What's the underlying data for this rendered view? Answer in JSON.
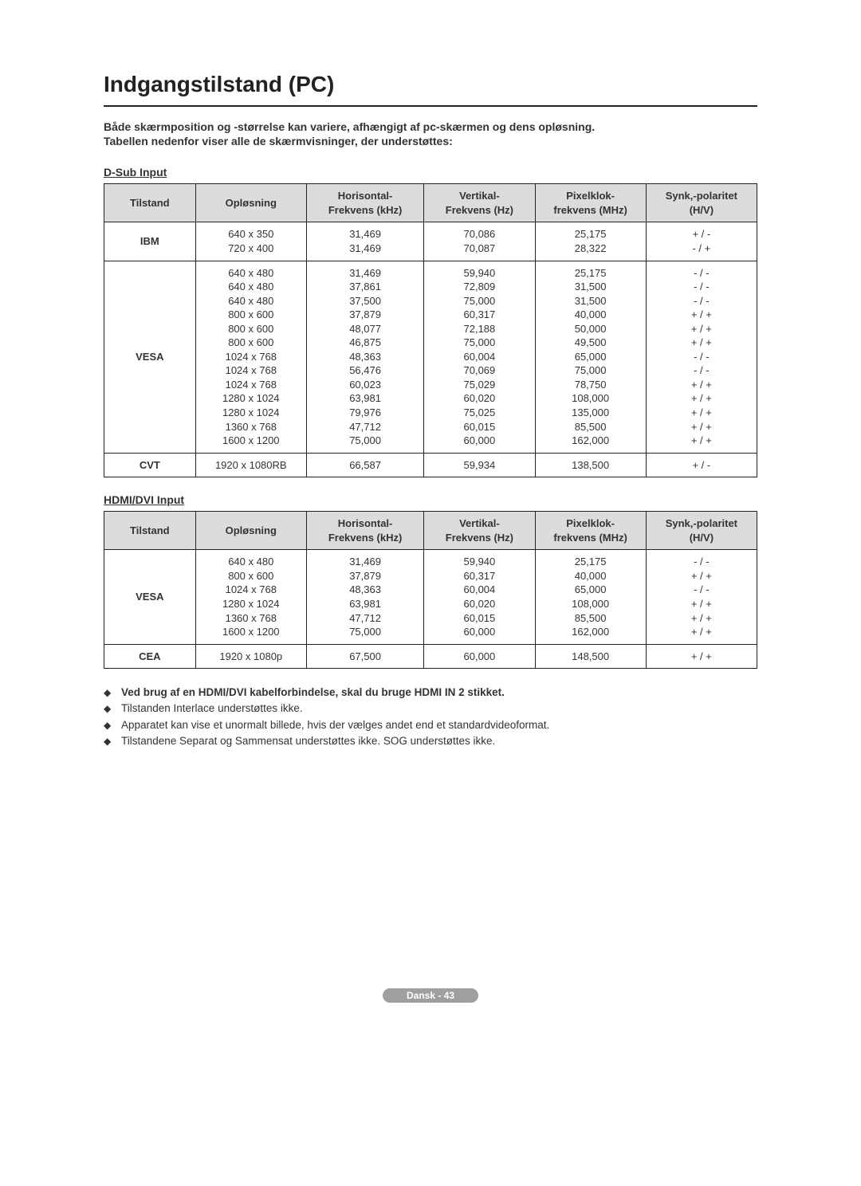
{
  "title": "Indgangstilstand (PC)",
  "intro_line1": "Både skærmposition og -størrelse kan variere, afhængigt af pc-skærmen og dens opløsning.",
  "intro_line2": "Tabellen nedenfor viser alle de skærmvisninger, der understøttes:",
  "headers": {
    "mode": "Tilstand",
    "res": "Opløsning",
    "hfreq1": "Horisontal-",
    "hfreq2": "Frekvens (kHz)",
    "vfreq1": "Vertikal-",
    "vfreq2": "Frekvens (Hz)",
    "pix1": "Pixelklok-",
    "pix2": "frekvens (MHz)",
    "sync1": "Synk,-polaritet",
    "sync2": "(H/V)"
  },
  "dsub": {
    "label": "D-Sub Input",
    "rows": [
      {
        "mode": "IBM",
        "res": [
          "640 x 350",
          "720 x 400"
        ],
        "h": [
          "31,469",
          "31,469"
        ],
        "v": [
          "70,086",
          "70,087"
        ],
        "p": [
          "25,175",
          "28,322"
        ],
        "s": [
          "+ / -",
          "- / +"
        ]
      },
      {
        "mode": "VESA",
        "res": [
          "640 x 480",
          "640 x 480",
          "640 x 480",
          "800 x 600",
          "800 x 600",
          "800 x 600",
          "1024 x 768",
          "1024 x 768",
          "1024 x 768",
          "1280 x 1024",
          "1280 x 1024",
          "1360 x 768",
          "1600 x 1200"
        ],
        "h": [
          "31,469",
          "37,861",
          "37,500",
          "37,879",
          "48,077",
          "46,875",
          "48,363",
          "56,476",
          "60,023",
          "63,981",
          "79,976",
          "47,712",
          "75,000"
        ],
        "v": [
          "59,940",
          "72,809",
          "75,000",
          "60,317",
          "72,188",
          "75,000",
          "60,004",
          "70,069",
          "75,029",
          "60,020",
          "75,025",
          "60,015",
          "60,000"
        ],
        "p": [
          "25,175",
          "31,500",
          "31,500",
          "40,000",
          "50,000",
          "49,500",
          "65,000",
          "75,000",
          "78,750",
          "108,000",
          "135,000",
          "85,500",
          "162,000"
        ],
        "s": [
          "- / -",
          "- / -",
          "- / -",
          "+ / +",
          "+ / +",
          "+ / +",
          "- / -",
          "- / -",
          "+ / +",
          "+ / +",
          "+ / +",
          "+ / +",
          "+ / +"
        ]
      },
      {
        "mode": "CVT",
        "res": [
          "1920 x 1080RB"
        ],
        "h": [
          "66,587"
        ],
        "v": [
          "59,934"
        ],
        "p": [
          "138,500"
        ],
        "s": [
          "+ / -"
        ]
      }
    ]
  },
  "hdmi": {
    "label": "HDMI/DVI Input",
    "rows": [
      {
        "mode": "VESA",
        "res": [
          "640 x 480",
          "800 x 600",
          "1024 x 768",
          "1280 x 1024",
          "1360 x 768",
          "1600 x 1200"
        ],
        "h": [
          "31,469",
          "37,879",
          "48,363",
          "63,981",
          "47,712",
          "75,000"
        ],
        "v": [
          "59,940",
          "60,317",
          "60,004",
          "60,020",
          "60,015",
          "60,000"
        ],
        "p": [
          "25,175",
          "40,000",
          "65,000",
          "108,000",
          "85,500",
          "162,000"
        ],
        "s": [
          "- / -",
          "+ / +",
          "- / -",
          "+ / +",
          "+ / +",
          "+ / +"
        ]
      },
      {
        "mode": "CEA",
        "res": [
          "1920 x 1080p"
        ],
        "h": [
          "67,500"
        ],
        "v": [
          "60,000"
        ],
        "p": [
          "148,500"
        ],
        "s": [
          "+ / +"
        ]
      }
    ]
  },
  "notes": [
    {
      "bold": true,
      "text": "Ved brug af en HDMI/DVI kabelforbindelse, skal du bruge HDMI IN 2 stikket."
    },
    {
      "bold": false,
      "text": "Tilstanden Interlace understøttes ikke."
    },
    {
      "bold": false,
      "text": "Apparatet kan vise et unormalt billede, hvis der vælges andet end et standardvideoformat."
    },
    {
      "bold": false,
      "text": "Tilstandene Separat og Sammensat understøttes ikke. SOG understøttes ikke."
    }
  ],
  "footer": "Dansk - 43"
}
